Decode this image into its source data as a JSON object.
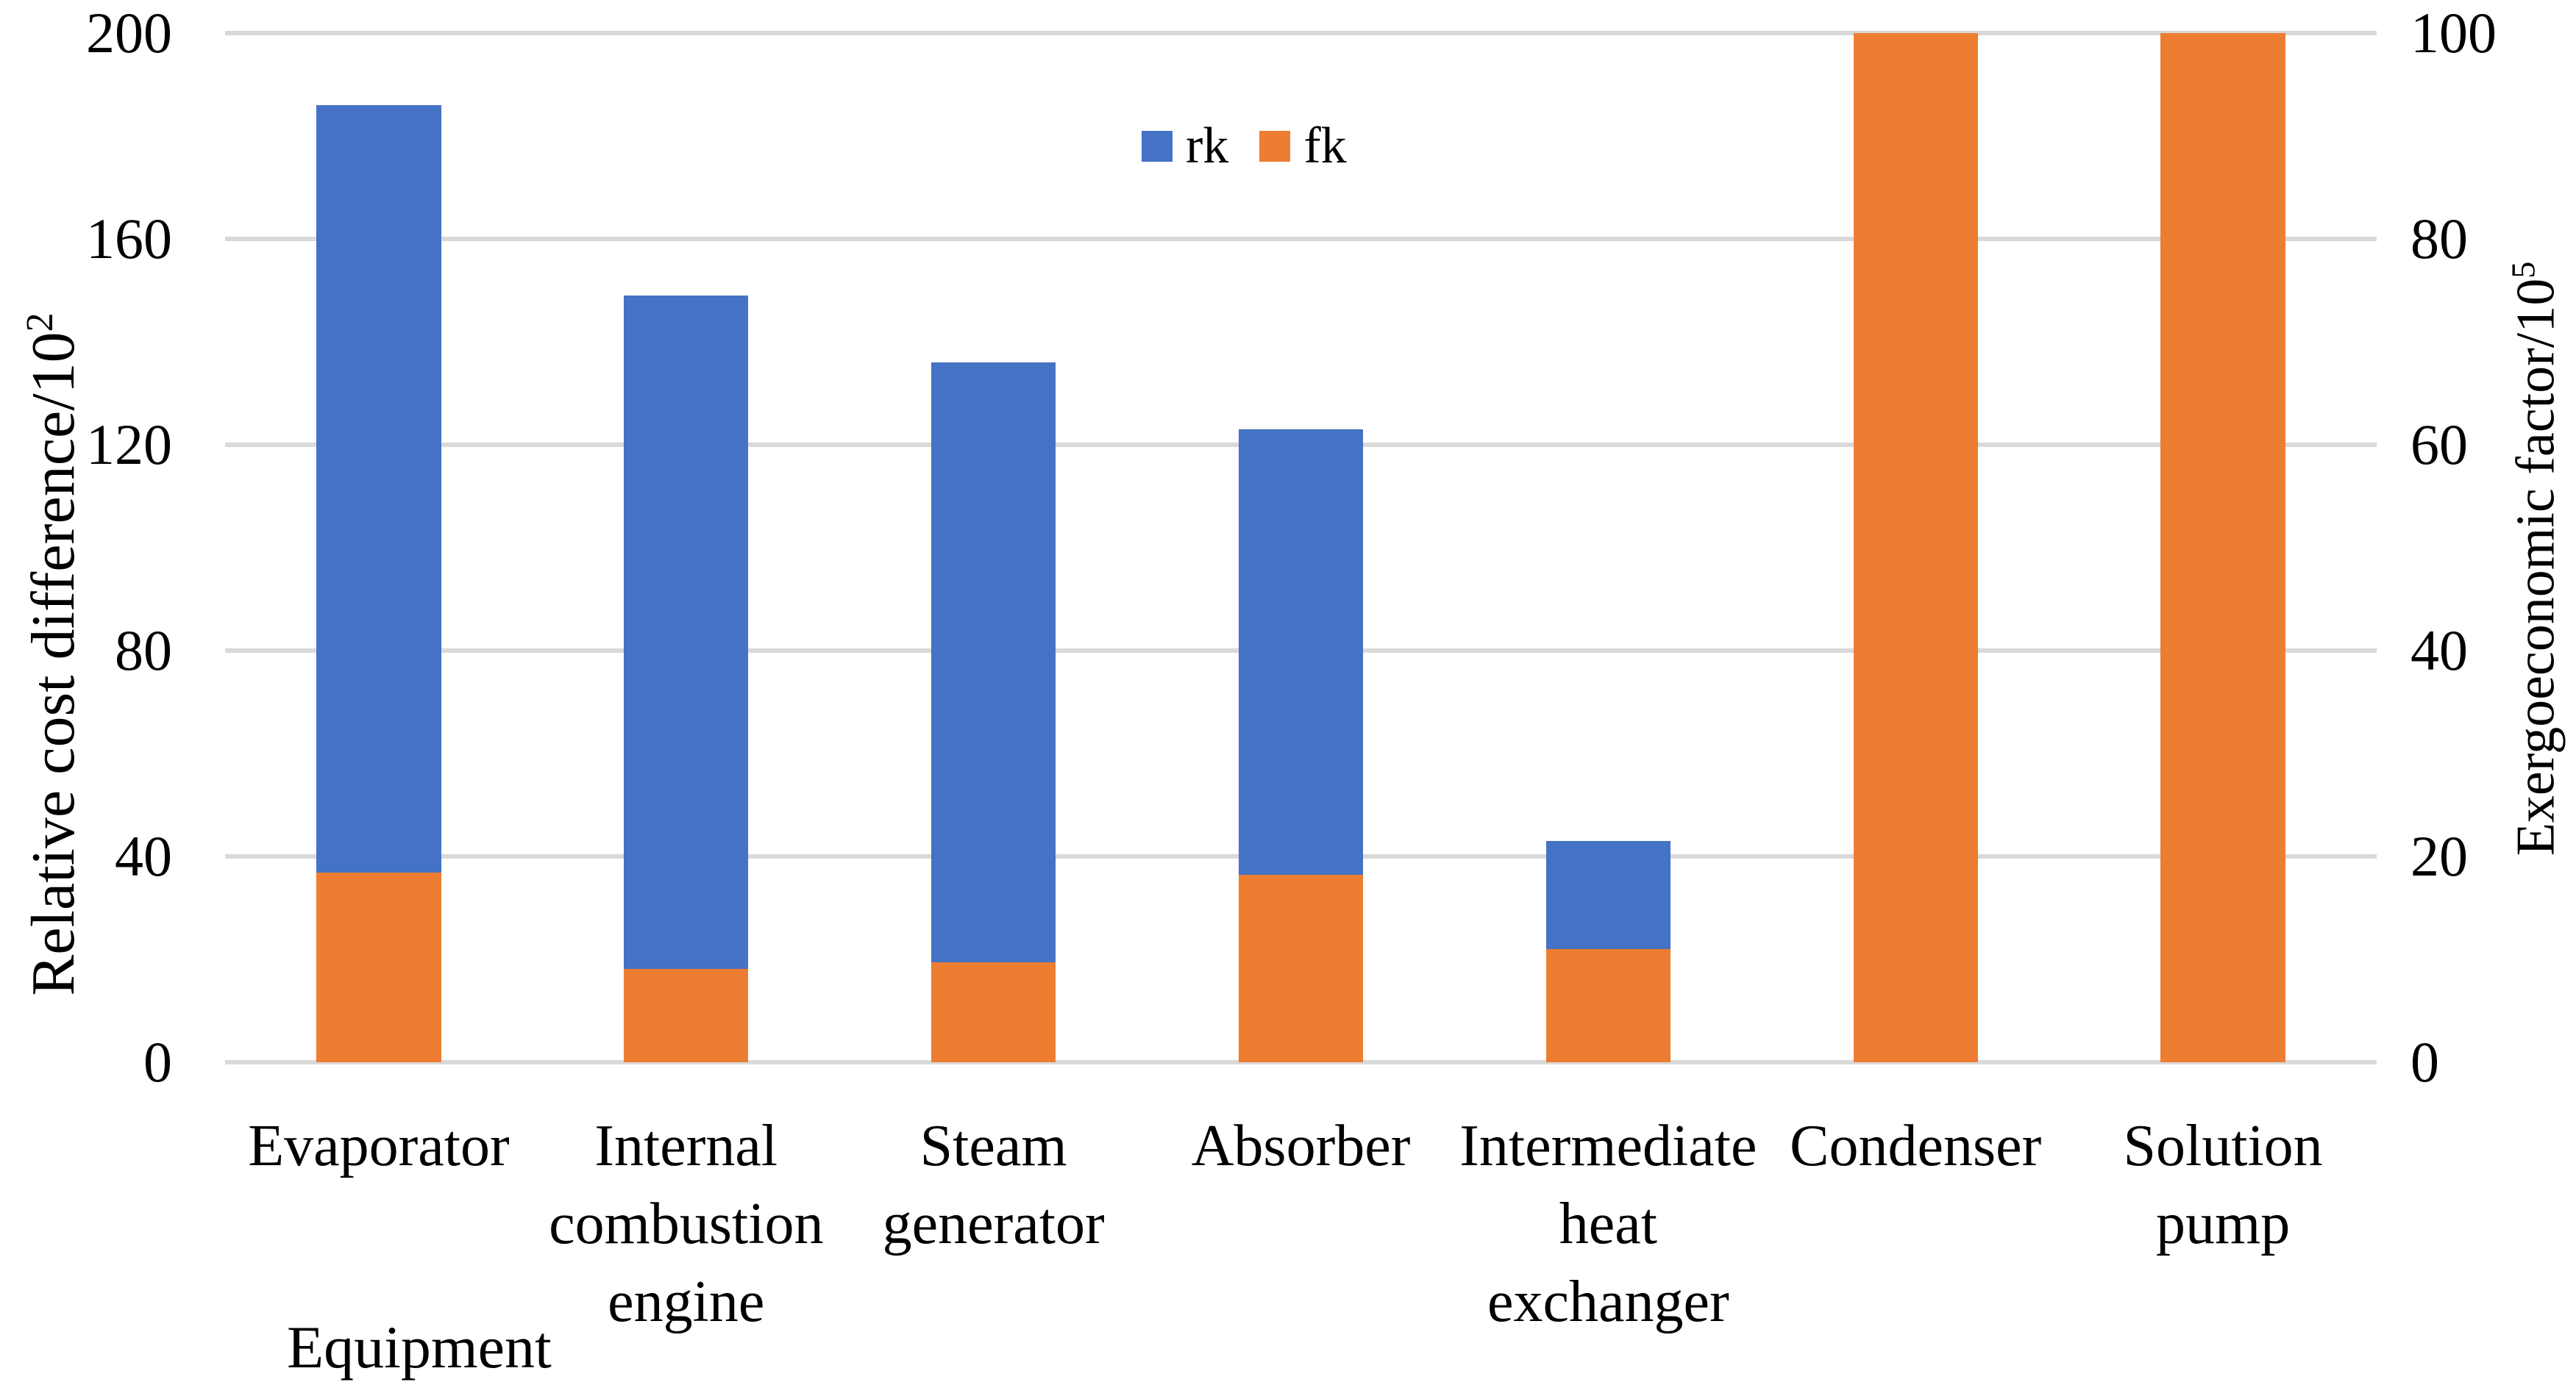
{
  "figure": {
    "background": "#FFFFFF"
  },
  "chart_data": {
    "type": "bar",
    "title": "",
    "categories": [
      "Evaporator",
      "Internal combustion engine",
      "Steam generator",
      "Absorber",
      "Intermediate heat exchanger",
      "Condenser",
      "Solution pump"
    ],
    "category_display_lines": [
      [
        "Evaporator"
      ],
      [
        "Internal",
        "combustion",
        "engine"
      ],
      [
        "Steam",
        "generator"
      ],
      [
        "Absorber"
      ],
      [
        "Intermediate",
        "heat",
        "exchanger"
      ],
      [
        "Condenser"
      ],
      [
        "Solution",
        "pump"
      ]
    ],
    "series": [
      {
        "name": "rk",
        "axis": "left",
        "color": "#4472C4",
        "values": [
          186,
          149,
          136,
          123,
          43,
          null,
          null
        ]
      },
      {
        "name": "fk",
        "axis": "right",
        "color": "#ED7D31",
        "values": [
          18.4,
          9.1,
          9.7,
          18.2,
          11,
          100,
          100
        ]
      }
    ],
    "legend": {
      "position": "top-center",
      "entries": [
        {
          "label": "rk",
          "color": "#4472C4"
        },
        {
          "label": "fk",
          "color": "#ED7D31"
        }
      ]
    },
    "left_axis": {
      "label": "Relative cost difference/10²",
      "label_base": "Relative cost difference/10",
      "label_sup": "2",
      "ticks": [
        200,
        160,
        120,
        80,
        40,
        0
      ],
      "min": 0,
      "max": 200
    },
    "right_axis": {
      "label": "Exergoeconomic factor/10⁵",
      "label_base": "Exergoeconomic factor/10",
      "label_sup": "5",
      "ticks": [
        100,
        80,
        60,
        40,
        20,
        0
      ],
      "min": 0,
      "max": 100
    },
    "x_axis": {
      "label": "Equipment"
    },
    "grid": {
      "show": true,
      "color": "#D9D9D9"
    }
  }
}
